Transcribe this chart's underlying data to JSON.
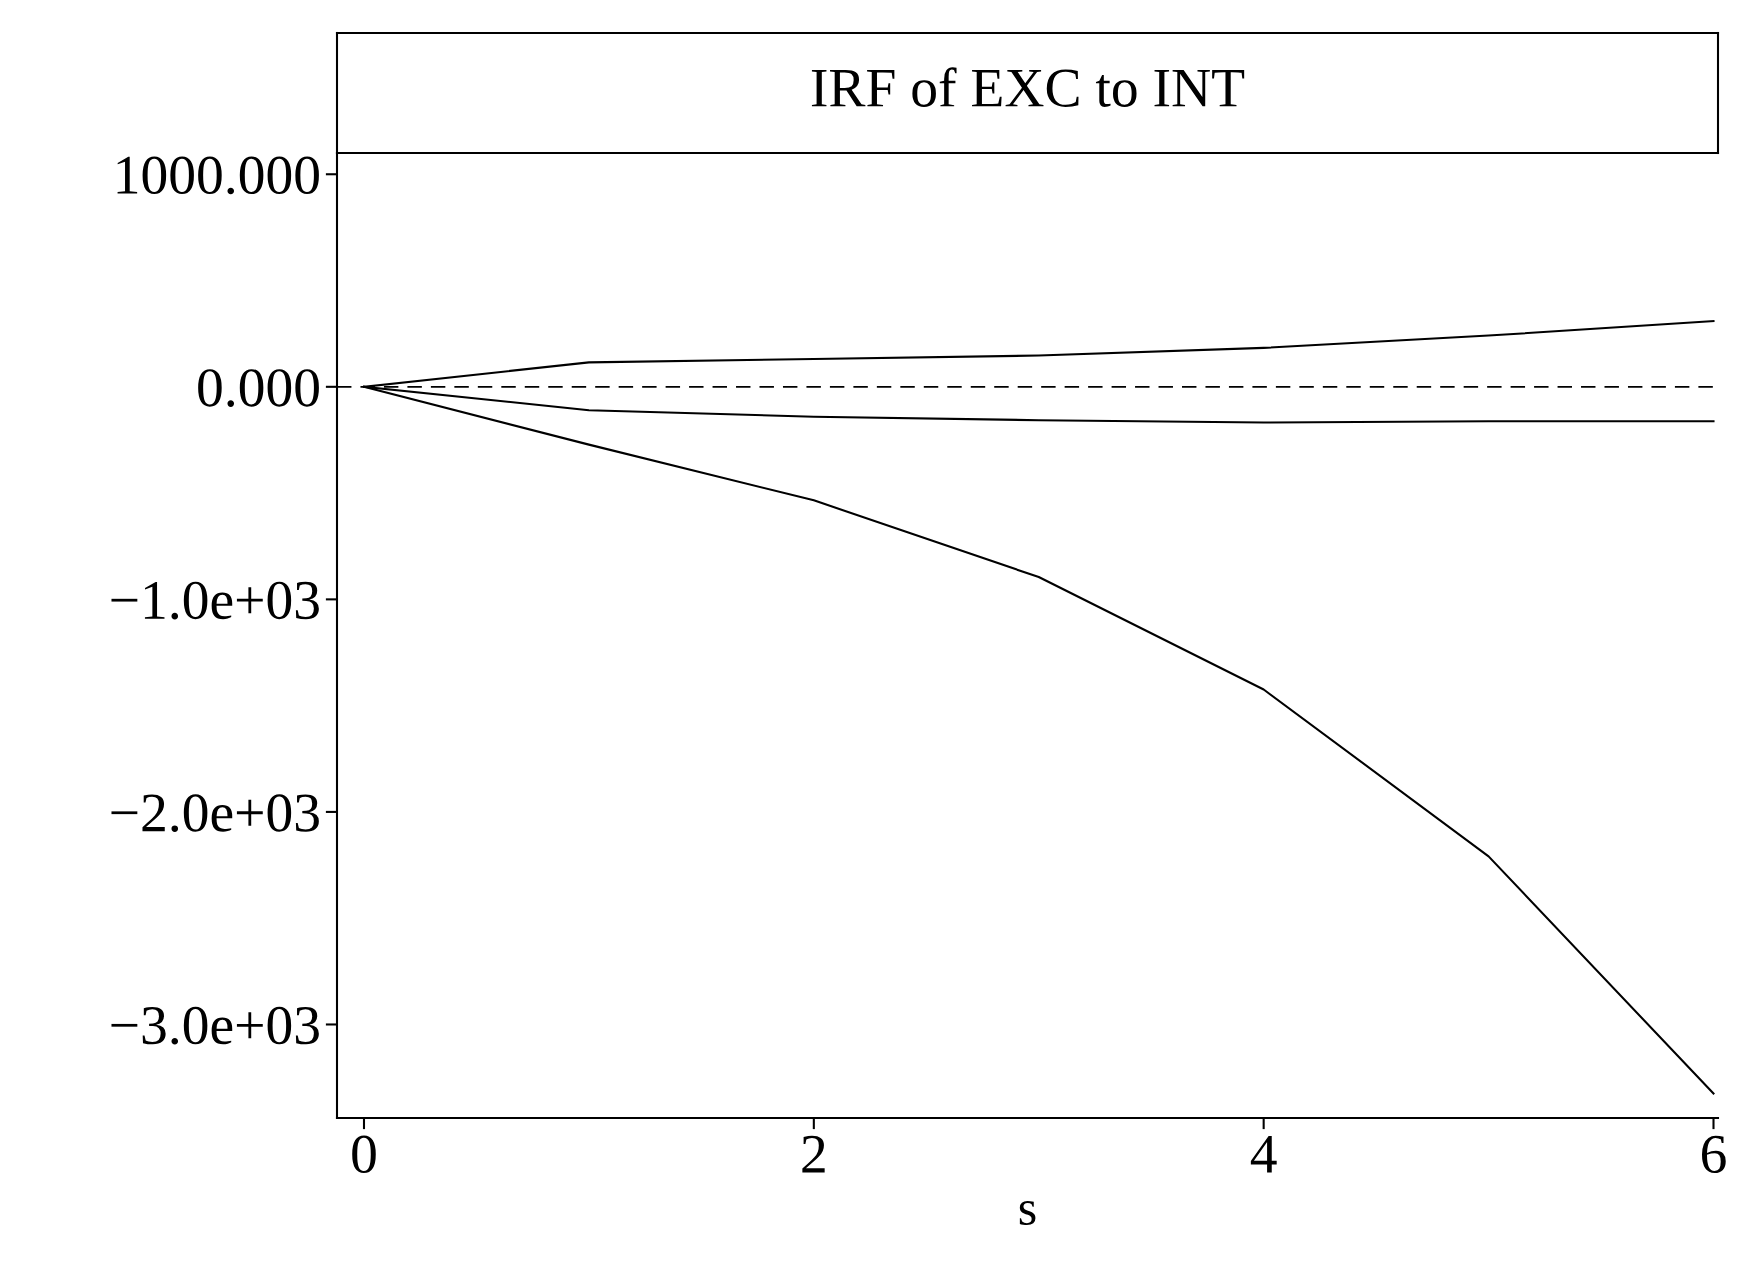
{
  "chart_data": {
    "type": "line",
    "title": "IRF of EXC to INT",
    "xlabel": "s",
    "x": [
      0,
      1,
      2,
      3,
      4,
      5,
      6
    ],
    "series": [
      {
        "color": "#000000",
        "values": [
          0,
          115,
          131,
          147,
          183,
          241,
          309
        ]
      },
      {
        "color": "#000000",
        "values": [
          0,
          -110,
          -141,
          -157,
          -168,
          -162,
          -162
        ]
      },
      {
        "color": "#000000",
        "values": [
          0,
          -272,
          -534,
          -895,
          -1424,
          -2209,
          -3325
        ]
      }
    ],
    "xlim": [
      -0.12,
      6.02
    ],
    "xticks": [
      0,
      2,
      4,
      6
    ],
    "ylim": [
      -3440,
      1100
    ],
    "yticks": [
      {
        "value": 1000,
        "label": "1000.000"
      },
      {
        "value": 0,
        "label": "0.000"
      },
      {
        "value": -1000,
        "label": "−1.0e+03"
      },
      {
        "value": -2000,
        "label": "−2.0e+03"
      },
      {
        "value": -3000,
        "label": "−3.0e+03"
      }
    ],
    "ref_lines": [
      {
        "axis": "y",
        "value": 0,
        "label": null,
        "color": "#000000",
        "line_style": "dashed"
      }
    ],
    "grid": false,
    "legend": false,
    "line_style": "solid",
    "marker": "none"
  }
}
